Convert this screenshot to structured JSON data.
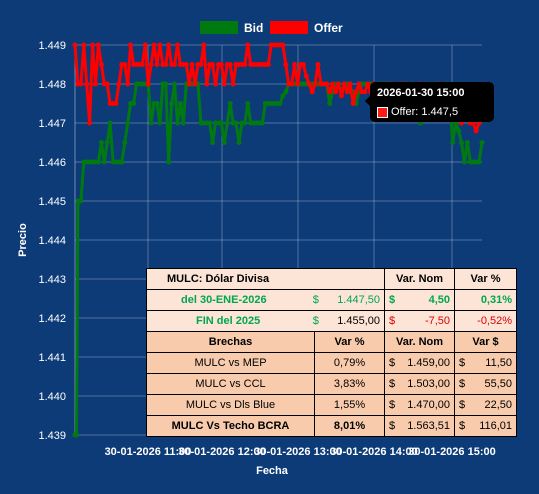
{
  "legend": {
    "bid_label": "Bid",
    "offer_label": "Offer"
  },
  "colors": {
    "bid": "#007a10",
    "offer": "#ff0000",
    "background": "#0d3b78"
  },
  "chart_data": {
    "type": "line",
    "xlabel": "Fecha",
    "ylabel": "Precio",
    "ylim": [
      1.439,
      1.449
    ],
    "y_ticks": [
      "1.439",
      "1.440",
      "1.441",
      "1.442",
      "1.443",
      "1.444",
      "1.445",
      "1.446",
      "1.447",
      "1.448",
      "1.449"
    ],
    "x_tick_labels": [
      "30-01-2026 11:00",
      "30-01-2026 12:00",
      "30-01-2026 13:00",
      "30-01-2026 14:00",
      "30-01-2026 15:00"
    ],
    "grid": true,
    "legend_position": "top-center",
    "x_units": "minutes after 10:33",
    "series": [
      {
        "name": "Bid",
        "color": "#007a10",
        "x": [
          0,
          1,
          2,
          4,
          6,
          8,
          10,
          12,
          14,
          16,
          18,
          20,
          22,
          24,
          26,
          28,
          30,
          31,
          32,
          34,
          36,
          38,
          40,
          42,
          44,
          46,
          48,
          50,
          52,
          54,
          56,
          58,
          60,
          62,
          64,
          66,
          68,
          70,
          72,
          74,
          76,
          78,
          80,
          82,
          84,
          86,
          88,
          90,
          92,
          94,
          96,
          98,
          100,
          102,
          104,
          106,
          108,
          110,
          112,
          114,
          116,
          118,
          120,
          122,
          124,
          126,
          128,
          130,
          132,
          134,
          136,
          138,
          140,
          142,
          144,
          146,
          148,
          150,
          152,
          154,
          156,
          158,
          160,
          162,
          164,
          166,
          168,
          170,
          172,
          174,
          176,
          178,
          180,
          182,
          184,
          186,
          188,
          190,
          192,
          194,
          196,
          198,
          200,
          202,
          204,
          206,
          208,
          210,
          212,
          214,
          216,
          218,
          220,
          222,
          224,
          226,
          228,
          230,
          232,
          234,
          236,
          238,
          240,
          242,
          244,
          246,
          248,
          250,
          252,
          254,
          256,
          258,
          260,
          262,
          264,
          266,
          268,
          270,
          272,
          274,
          276,
          278
        ],
        "y": [
          1.439,
          1.439,
          1.445,
          1.445,
          1.446,
          1.446,
          1.446,
          1.446,
          1.446,
          1.446,
          1.4465,
          1.446,
          1.4465,
          1.447,
          1.446,
          1.446,
          1.446,
          1.446,
          1.446,
          1.4465,
          1.447,
          1.4475,
          1.4475,
          1.448,
          1.448,
          1.448,
          1.448,
          1.448,
          1.447,
          1.4475,
          1.4475,
          1.447,
          1.448,
          1.448,
          1.446,
          1.4475,
          1.448,
          1.447,
          1.4475,
          1.447,
          1.448,
          1.448,
          1.448,
          1.448,
          1.448,
          1.447,
          1.447,
          1.447,
          1.447,
          1.4465,
          1.447,
          1.447,
          1.447,
          1.4465,
          1.447,
          1.4475,
          1.447,
          1.447,
          1.4465,
          1.447,
          1.447,
          1.4475,
          1.447,
          1.447,
          1.447,
          1.447,
          1.447,
          1.4475,
          1.4475,
          1.4475,
          1.4475,
          1.4475,
          1.4475,
          1.4477,
          1.4478,
          1.448,
          1.448,
          1.448,
          1.448,
          1.448,
          1.448,
          1.448,
          1.448,
          1.448,
          1.448,
          1.448,
          1.448,
          1.448,
          1.448,
          1.4475,
          1.4478,
          1.448,
          1.448,
          1.4478,
          1.448,
          1.448,
          1.4478,
          1.4478,
          1.4475,
          1.4478,
          1.448,
          1.448,
          1.448,
          1.448,
          1.4475,
          1.4478,
          1.448,
          1.448,
          1.448,
          1.4475,
          1.448,
          1.4478,
          1.4475,
          1.4478,
          1.448,
          1.448,
          1.4475,
          1.448,
          1.4478,
          1.4475,
          1.447,
          1.4478,
          1.448,
          1.4478,
          1.4475,
          1.448,
          1.448,
          1.4475,
          1.4478,
          1.448,
          1.4475,
          1.4465,
          1.447,
          1.4468,
          1.4465,
          1.446,
          1.4465,
          1.446,
          1.446,
          1.446,
          1.446,
          1.4465
        ]
      },
      {
        "name": "Offer",
        "color": "#ff0000",
        "x": [
          0,
          2,
          4,
          6,
          8,
          10,
          12,
          14,
          16,
          18,
          20,
          22,
          24,
          26,
          28,
          30,
          32,
          34,
          36,
          38,
          40,
          42,
          44,
          46,
          48,
          50,
          52,
          54,
          56,
          58,
          60,
          62,
          64,
          66,
          68,
          70,
          72,
          74,
          76,
          78,
          80,
          82,
          84,
          86,
          88,
          90,
          92,
          94,
          96,
          98,
          100,
          102,
          104,
          106,
          108,
          110,
          112,
          114,
          116,
          118,
          120,
          122,
          124,
          126,
          128,
          130,
          132,
          134,
          136,
          138,
          140,
          142,
          144,
          146,
          148,
          150,
          152,
          154,
          156,
          158,
          160,
          162,
          164,
          166,
          168,
          170,
          172,
          174,
          176,
          178,
          180,
          182,
          184,
          186,
          188,
          190,
          192,
          194,
          196,
          198,
          200,
          202,
          204,
          206,
          208,
          210,
          212,
          214,
          216,
          218,
          220,
          222,
          224,
          226,
          228,
          230,
          232,
          234,
          236,
          238,
          240,
          242,
          244,
          246,
          248,
          250,
          252,
          254,
          256,
          258,
          260,
          262,
          264,
          266,
          268,
          270,
          272,
          274,
          276,
          278
        ],
        "y": [
          1.449,
          1.448,
          1.448,
          1.449,
          1.448,
          1.447,
          1.449,
          1.448,
          1.449,
          1.4485,
          1.448,
          1.448,
          1.4475,
          1.4475,
          1.4475,
          1.448,
          1.4485,
          1.4485,
          1.448,
          1.449,
          1.4485,
          1.4485,
          1.4485,
          1.4485,
          1.449,
          1.448,
          1.4485,
          1.449,
          1.4485,
          1.449,
          1.4485,
          1.4485,
          1.449,
          1.4485,
          1.4485,
          1.449,
          1.4485,
          1.4485,
          1.4485,
          1.448,
          1.4485,
          1.448,
          1.4485,
          1.4485,
          1.449,
          1.448,
          1.4485,
          1.4485,
          1.448,
          1.4485,
          1.4485,
          1.448,
          1.4485,
          1.4485,
          1.448,
          1.4485,
          1.4485,
          1.4485,
          1.4485,
          1.449,
          1.4485,
          1.4485,
          1.4485,
          1.4485,
          1.4485,
          1.4485,
          1.4485,
          1.449,
          1.449,
          1.449,
          1.449,
          1.449,
          1.4485,
          1.448,
          1.448,
          1.4485,
          1.448,
          1.4485,
          1.4485,
          1.4482,
          1.448,
          1.4478,
          1.448,
          1.4485,
          1.448,
          1.448,
          1.448,
          1.4478,
          1.448,
          1.4478,
          1.448,
          1.4477,
          1.448,
          1.4478,
          1.448,
          1.4475,
          1.4478,
          1.448,
          1.4478,
          1.4478,
          1.448,
          1.4478,
          1.448,
          1.4478,
          1.4475,
          1.4478,
          1.4475,
          1.448,
          1.4478,
          1.4475,
          1.4478,
          1.448,
          1.4475,
          1.448,
          1.4478,
          1.4477,
          1.4475,
          1.4478,
          1.448,
          1.4475,
          1.4478,
          1.4475,
          1.4478,
          1.4475,
          1.448,
          1.4477,
          1.4475,
          1.4478,
          1.4475,
          1.4475,
          1.4475,
          1.4475,
          1.447,
          1.4475,
          1.4473,
          1.447,
          1.447,
          1.4468,
          1.447,
          1.4475
        ]
      }
    ]
  },
  "tooltip": {
    "title": "2026-01-30 15:00",
    "label": "Offer: 1.447,5"
  },
  "table": {
    "head": {
      "title": "MULC: Dólar Divisa",
      "var_nom": "Var. Nom",
      "var_pct": "Var %"
    },
    "current": {
      "label": "del 30-ENE-2026",
      "currency": "$",
      "value": "1.447,50",
      "var_currency": "$",
      "var_nom": "4,50",
      "var_pct": "0,31%"
    },
    "previous": {
      "label": "FIN del 2025",
      "currency": "$",
      "value": "1.455,00",
      "var_currency": "$",
      "var_nom": "-7,50",
      "var_pct": "-0,52%"
    },
    "brechas_head": {
      "title": "Brechas",
      "var_pct": "Var %",
      "var_nom": "Var. Nom",
      "var_usd": "Var $"
    },
    "brechas": [
      {
        "name": "MULC vs MEP",
        "pct": "0,79%",
        "cur": "$",
        "nom": "1.459,00",
        "cur2": "$",
        "usd": "11,50"
      },
      {
        "name": "MULC vs CCL",
        "pct": "3,83%",
        "cur": "$",
        "nom": "1.503,00",
        "cur2": "$",
        "usd": "55,50"
      },
      {
        "name": "MULC vs Dls Blue",
        "pct": "1,55%",
        "cur": "$",
        "nom": "1.470,00",
        "cur2": "$",
        "usd": "22,50"
      },
      {
        "name": "MULC Vs Techo BCRA",
        "pct": "8,01%",
        "cur": "$",
        "nom": "1.563,51",
        "cur2": "$",
        "usd": "116,01"
      }
    ]
  }
}
